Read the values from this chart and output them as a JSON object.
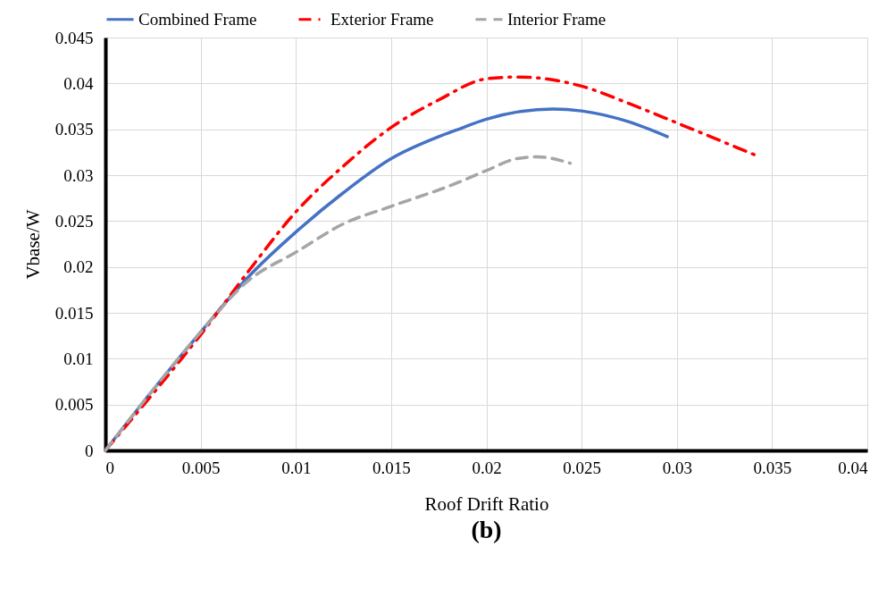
{
  "chart_data": {
    "type": "line",
    "title": "(b)",
    "xlabel": "Roof Drift Ratio",
    "ylabel": "Vbase/W",
    "series": [
      {
        "name": "Combined Frame",
        "color": "#4472c4",
        "line_style": "solid",
        "x": [
          0,
          0.0025,
          0.005,
          0.0075,
          0.01,
          0.0125,
          0.015,
          0.0175,
          0.0184,
          0.02,
          0.0235,
          0.025,
          0.0275,
          0.0295
        ],
        "values": [
          0,
          0.0066,
          0.0129,
          0.0189,
          0.0238,
          0.0281,
          0.0318,
          0.0342,
          0.0349,
          0.0361,
          0.0372,
          0.037,
          0.0358,
          0.0342
        ]
      },
      {
        "name": "Exterior Frame",
        "color": "#ff0000",
        "line_style": "dashdot",
        "x": [
          0,
          0.0025,
          0.005,
          0.0075,
          0.01,
          0.0125,
          0.015,
          0.0175,
          0.02,
          0.0217,
          0.025,
          0.0275,
          0.03,
          0.0341
        ],
        "values": [
          0,
          0.0062,
          0.0126,
          0.0195,
          0.026,
          0.031,
          0.0352,
          0.0382,
          0.0405,
          0.0407,
          0.0397,
          0.0378,
          0.0357,
          0.0322
        ]
      },
      {
        "name": "Interior Frame",
        "color": "#a5a5a5",
        "line_style": "dashed",
        "x": [
          0,
          0.0025,
          0.005,
          0.0075,
          0.01,
          0.0125,
          0.015,
          0.0184,
          0.02,
          0.0216,
          0.0227,
          0.0244
        ],
        "values": [
          0,
          0.0066,
          0.0129,
          0.0185,
          0.0216,
          0.0247,
          0.0266,
          0.0291,
          0.0305,
          0.0318,
          0.032,
          0.0313
        ]
      }
    ],
    "xlim": [
      0,
      0.04
    ],
    "xticks": [
      0,
      0.005,
      0.01,
      0.015,
      0.02,
      0.025,
      0.03,
      0.035,
      0.04
    ],
    "ylim": [
      0,
      0.045
    ],
    "yticks": [
      0,
      0.005,
      0.01,
      0.015,
      0.02,
      0.025,
      0.03,
      0.035,
      0.04,
      0.045
    ],
    "grid": true,
    "legend": "top"
  }
}
